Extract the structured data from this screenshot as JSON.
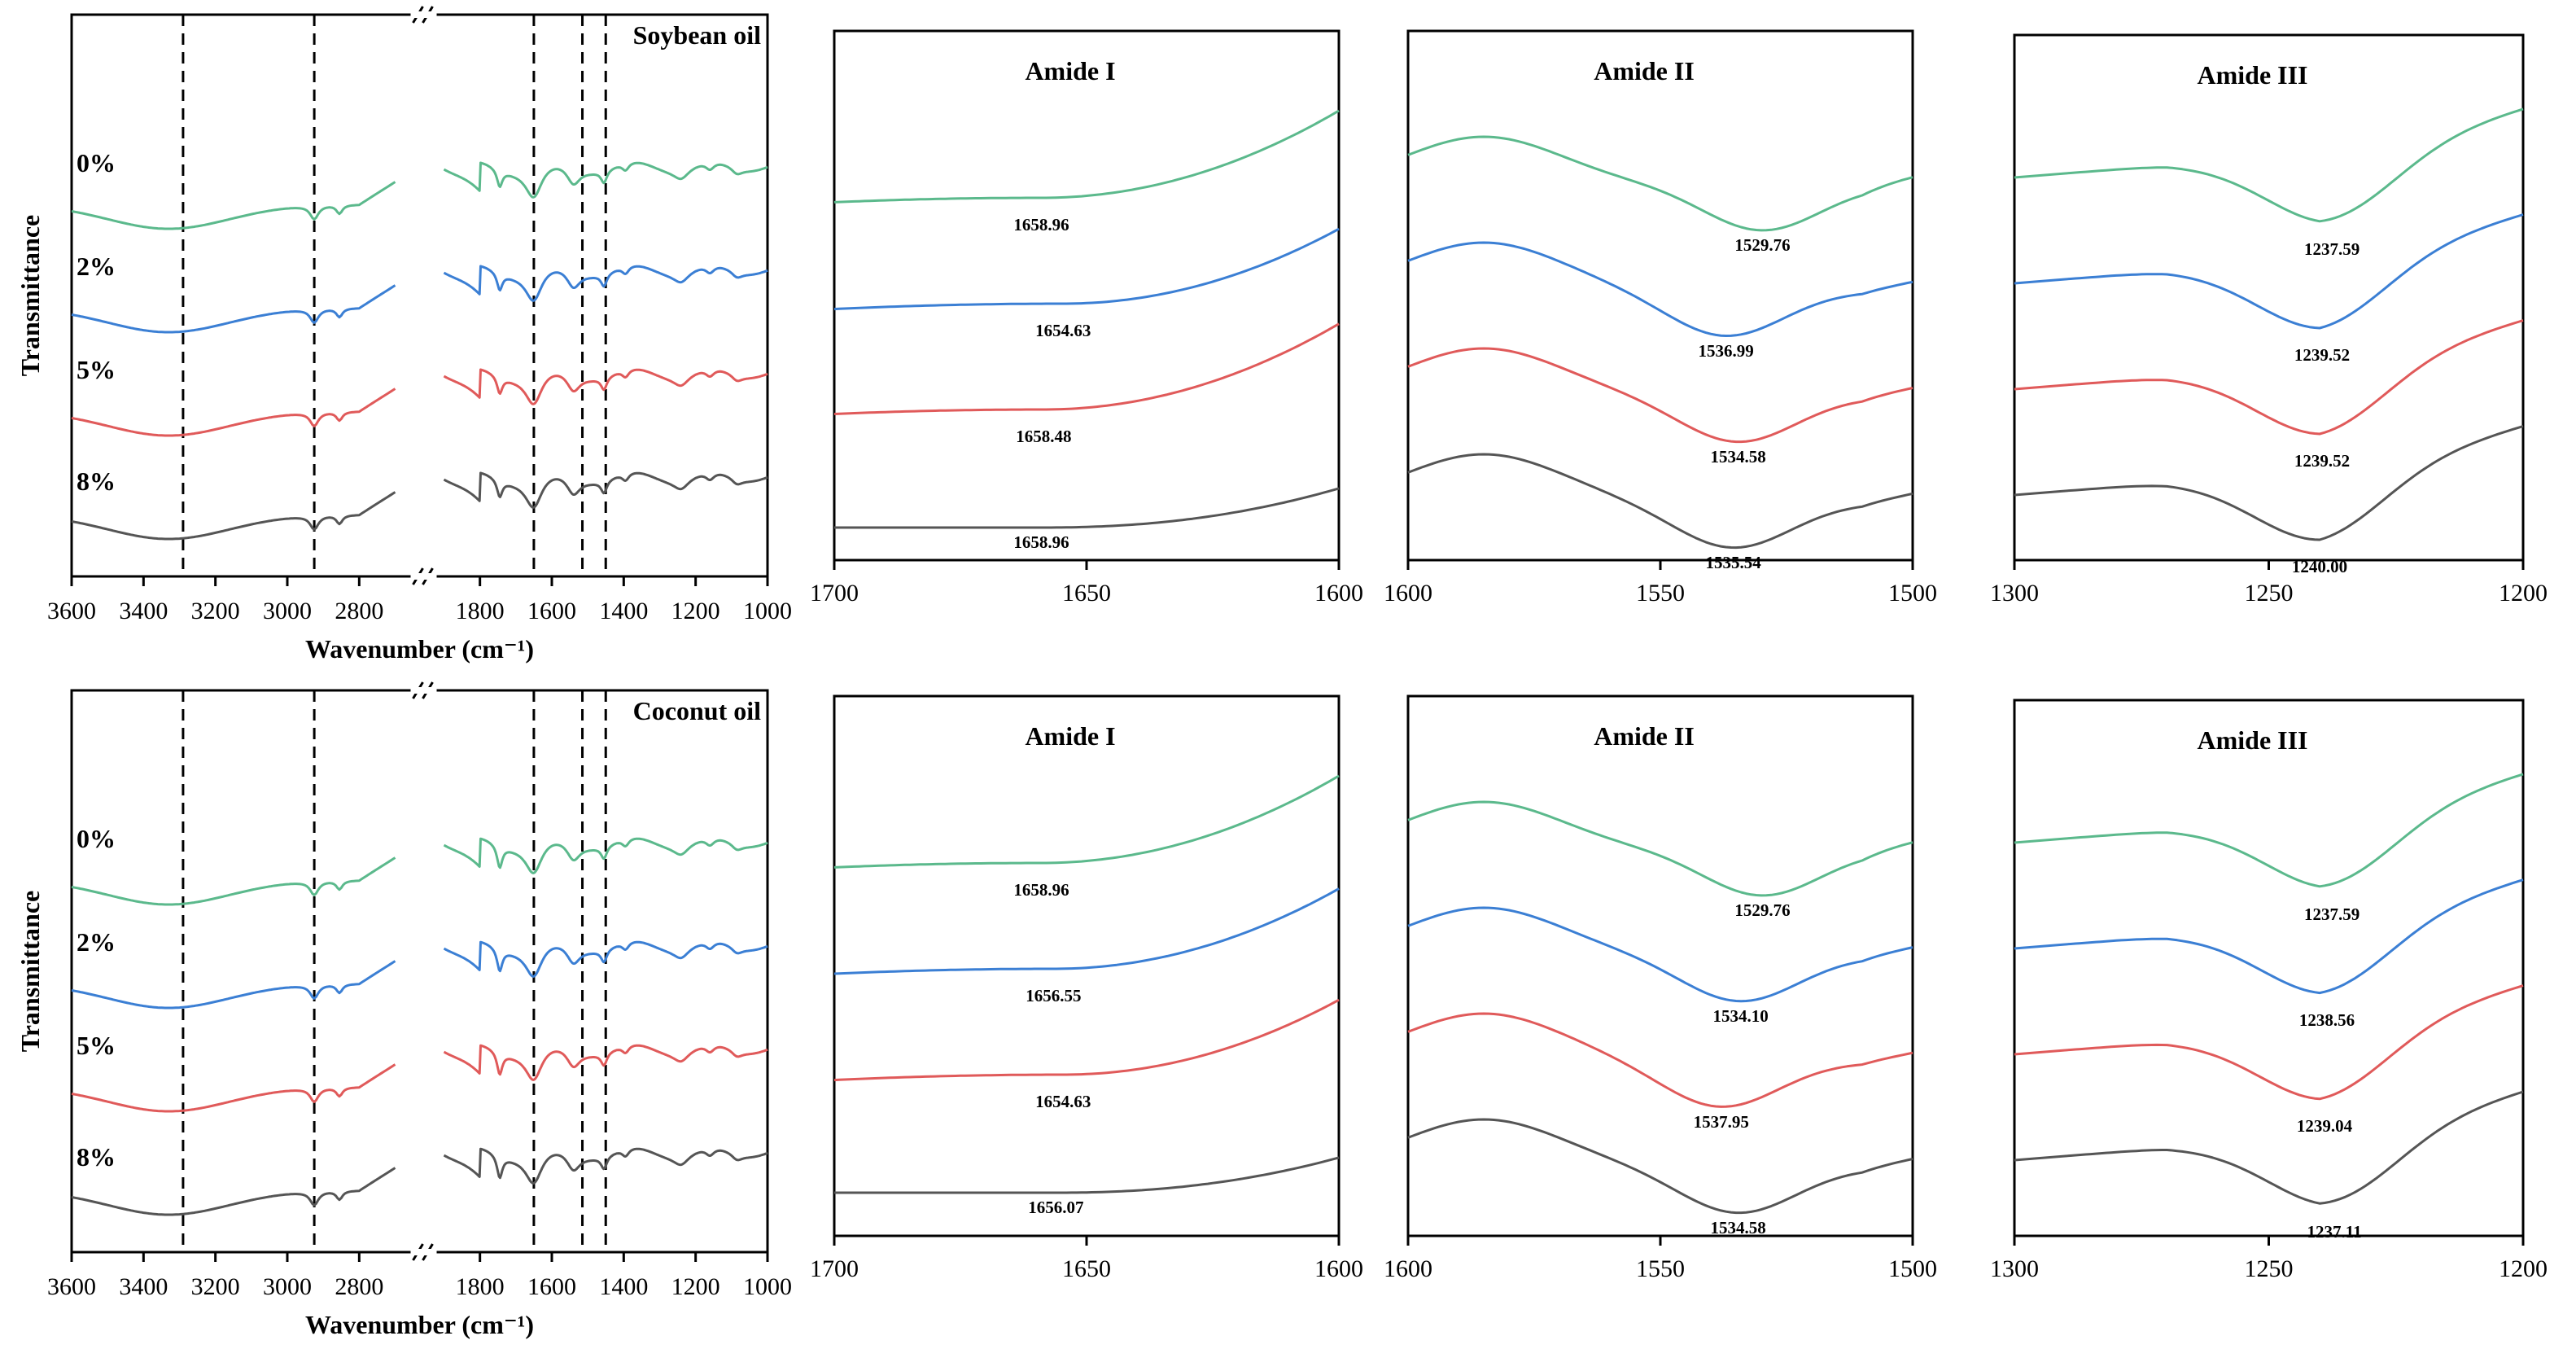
{
  "colors": {
    "0%": "#5bb98c",
    "2%": "#3b7fd4",
    "5%": "#e05a5a",
    "8%": "#555555"
  },
  "shared": {
    "ylabel": "Transmittance",
    "xlabel": "Wavenumber (cm⁻¹)"
  },
  "chart_data": [
    {
      "id": "soy-full",
      "type": "line",
      "title": "Soybean oil",
      "xlabel": "Wavenumber (cm⁻¹)",
      "ylabel": "Transmittance",
      "xlim_left": [
        3600,
        2700
      ],
      "xlim_right": [
        1900,
        1000
      ],
      "axis_break": true,
      "xticks_left": [
        "3600",
        "3400",
        "3200",
        "3000",
        "2800"
      ],
      "xticks_right": [
        "1800",
        "1600",
        "1400",
        "1200",
        "1000"
      ],
      "dashed_lines": [
        3290,
        2925,
        1650,
        1515,
        1450
      ],
      "series": [
        {
          "name": "0%",
          "label": "0%",
          "offset": 3.0
        },
        {
          "name": "2%",
          "label": "2%",
          "offset": 2.0
        },
        {
          "name": "5%",
          "label": "5%",
          "offset": 1.0
        },
        {
          "name": "8%",
          "label": "8%",
          "offset": 0.0
        }
      ]
    },
    {
      "id": "soy-amide1",
      "type": "line",
      "title": "Amide I",
      "xlim": [
        1700,
        1600
      ],
      "xticks": [
        "1700",
        "1650",
        "1600"
      ],
      "series": [
        {
          "name": "0%",
          "peak": 1658.96,
          "label": "1658.96"
        },
        {
          "name": "2%",
          "peak": 1654.63,
          "label": "1654.63"
        },
        {
          "name": "5%",
          "peak": 1658.48,
          "label": "1658.48"
        },
        {
          "name": "8%",
          "peak": 1658.96,
          "label": "1658.96"
        }
      ]
    },
    {
      "id": "soy-amide2",
      "type": "line",
      "title": "Amide II",
      "xlim": [
        1600,
        1500
      ],
      "xticks": [
        "1600",
        "1550",
        "1500"
      ],
      "series": [
        {
          "name": "0%",
          "peak": 1529.76,
          "label": "1529.76"
        },
        {
          "name": "2%",
          "peak": 1536.99,
          "label": "1536.99"
        },
        {
          "name": "5%",
          "peak": 1534.58,
          "label": "1534.58"
        },
        {
          "name": "8%",
          "peak": 1535.54,
          "label": "1535.54"
        }
      ]
    },
    {
      "id": "soy-amide3",
      "type": "line",
      "title": "Amide III",
      "xlim": [
        1300,
        1200
      ],
      "xticks": [
        "1300",
        "1250",
        "1200"
      ],
      "series": [
        {
          "name": "0%",
          "peak": 1237.59,
          "label": "1237.59"
        },
        {
          "name": "2%",
          "peak": 1239.52,
          "label": "1239.52"
        },
        {
          "name": "5%",
          "peak": 1239.52,
          "label": "1239.52"
        },
        {
          "name": "8%",
          "peak": 1240.0,
          "label": "1240.00"
        }
      ]
    },
    {
      "id": "coco-full",
      "type": "line",
      "title": "Coconut oil",
      "xlabel": "Wavenumber (cm⁻¹)",
      "ylabel": "Transmittance",
      "xlim_left": [
        3600,
        2700
      ],
      "xlim_right": [
        1900,
        1000
      ],
      "axis_break": true,
      "xticks_left": [
        "3600",
        "3400",
        "3200",
        "3000",
        "2800"
      ],
      "xticks_right": [
        "1800",
        "1600",
        "1400",
        "1200",
        "1000"
      ],
      "dashed_lines": [
        3290,
        2925,
        1650,
        1515,
        1450
      ],
      "series": [
        {
          "name": "0%",
          "label": "0%",
          "offset": 3.0
        },
        {
          "name": "2%",
          "label": "2%",
          "offset": 2.0
        },
        {
          "name": "5%",
          "label": "5%",
          "offset": 1.0
        },
        {
          "name": "8%",
          "label": "8%",
          "offset": 0.0
        }
      ]
    },
    {
      "id": "coco-amide1",
      "type": "line",
      "title": "Amide I",
      "xlim": [
        1700,
        1600
      ],
      "xticks": [
        "1700",
        "1650",
        "1600"
      ],
      "series": [
        {
          "name": "0%",
          "peak": 1658.96,
          "label": "1658.96"
        },
        {
          "name": "2%",
          "peak": 1656.55,
          "label": "1656.55"
        },
        {
          "name": "5%",
          "peak": 1654.63,
          "label": "1654.63"
        },
        {
          "name": "8%",
          "peak": 1656.07,
          "label": "1656.07"
        }
      ]
    },
    {
      "id": "coco-amide2",
      "type": "line",
      "title": "Amide II",
      "xlim": [
        1600,
        1500
      ],
      "xticks": [
        "1600",
        "1550",
        "1500"
      ],
      "series": [
        {
          "name": "0%",
          "peak": 1529.76,
          "label": "1529.76"
        },
        {
          "name": "2%",
          "peak": 1534.1,
          "label": "1534.10"
        },
        {
          "name": "5%",
          "peak": 1537.95,
          "label": "1537.95"
        },
        {
          "name": "8%",
          "peak": 1534.58,
          "label": "1534.58"
        }
      ]
    },
    {
      "id": "coco-amide3",
      "type": "line",
      "title": "Amide III",
      "xlim": [
        1300,
        1200
      ],
      "xticks": [
        "1300",
        "1250",
        "1200"
      ],
      "series": [
        {
          "name": "0%",
          "peak": 1237.59,
          "label": "1237.59"
        },
        {
          "name": "2%",
          "peak": 1238.56,
          "label": "1238.56"
        },
        {
          "name": "5%",
          "peak": 1239.04,
          "label": "1239.04"
        },
        {
          "name": "8%",
          "peak": 1237.11,
          "label": "1237.11"
        }
      ]
    }
  ]
}
